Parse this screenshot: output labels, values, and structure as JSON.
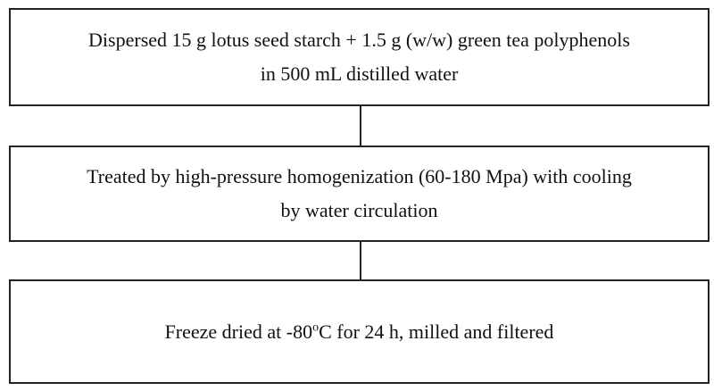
{
  "nodes": [
    {
      "lines": [
        "Dispersed 15 g lotus seed starch + 1.5 g (w/w) green tea polyphenols",
        "in 500 mL distilled water"
      ]
    },
    {
      "lines": [
        "Treated by high-pressure homogenization (60-180 Mpa) with cooling",
        "by water circulation"
      ]
    },
    {
      "lines": [
        [
          "Freeze dried at -80",
          "o",
          "C for 24 h, milled and filtered"
        ]
      ]
    }
  ]
}
